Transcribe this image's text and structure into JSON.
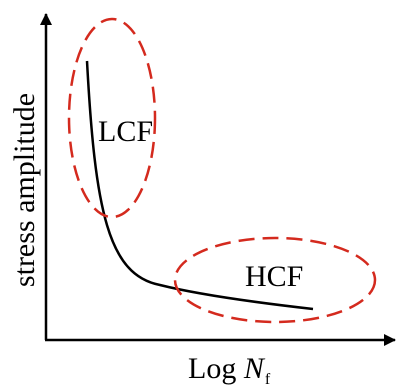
{
  "diagram": {
    "y_axis_label": "stress amplitude",
    "x_axis_label": {
      "prefix": "Log ",
      "variable": "N",
      "subscript": "f"
    },
    "regions": [
      {
        "label": "LCF"
      },
      {
        "label": "HCF"
      }
    ],
    "colors": {
      "axes": "#000000",
      "curve": "#000000",
      "region_outline": "#d42a1e",
      "text": "#000000"
    }
  }
}
